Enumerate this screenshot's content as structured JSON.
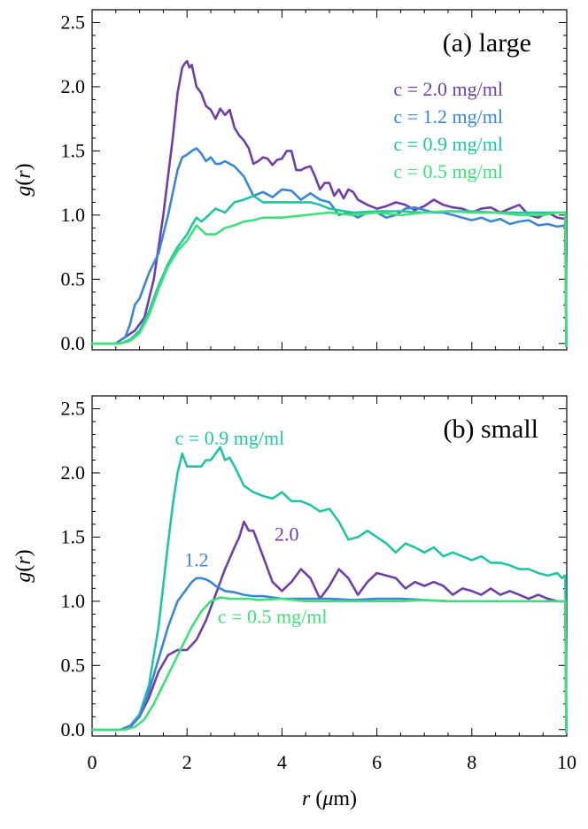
{
  "chart_data": [
    {
      "type": "line",
      "panel_label": "(a) large",
      "xlabel": "",
      "ylabel": "g(r)",
      "xlim": [
        0,
        10
      ],
      "ylim": [
        -0.05,
        2.6
      ],
      "yticks": [
        "0.0",
        "0.5",
        "1.0",
        "1.5",
        "2.0",
        "2.5"
      ],
      "xticks": [],
      "legend_placement": "top-right",
      "series": [
        {
          "name": "c = 2.0 mg/ml",
          "color": "#6f3fa7",
          "x": [
            0,
            0.5,
            0.7,
            0.9,
            1.1,
            1.3,
            1.5,
            1.7,
            1.8,
            1.9,
            1.95,
            2.0,
            2.05,
            2.1,
            2.2,
            2.3,
            2.4,
            2.5,
            2.6,
            2.7,
            2.8,
            2.9,
            3.0,
            3.1,
            3.2,
            3.3,
            3.4,
            3.5,
            3.6,
            3.7,
            3.8,
            3.9,
            4.0,
            4.1,
            4.2,
            4.3,
            4.4,
            4.5,
            4.6,
            4.7,
            4.8,
            4.9,
            5.0,
            5.1,
            5.2,
            5.3,
            5.4,
            5.5,
            5.6,
            5.8,
            6.0,
            6.2,
            6.4,
            6.6,
            6.8,
            7.0,
            7.2,
            7.4,
            7.6,
            7.8,
            8.0,
            8.2,
            8.4,
            8.6,
            8.8,
            9.0,
            9.2,
            9.4,
            9.6,
            9.8,
            9.97,
            9.99
          ],
          "y": [
            0.0,
            0.0,
            0.05,
            0.1,
            0.2,
            0.5,
            1.0,
            1.6,
            1.95,
            2.15,
            2.18,
            2.2,
            2.15,
            2.17,
            2.0,
            1.95,
            1.85,
            1.82,
            1.75,
            1.83,
            1.78,
            1.82,
            1.68,
            1.62,
            1.58,
            1.52,
            1.4,
            1.42,
            1.45,
            1.44,
            1.39,
            1.43,
            1.44,
            1.5,
            1.5,
            1.35,
            1.35,
            1.37,
            1.38,
            1.3,
            1.2,
            1.25,
            1.25,
            1.15,
            1.2,
            1.13,
            1.2,
            1.18,
            1.12,
            1.08,
            1.05,
            1.07,
            1.1,
            1.08,
            1.04,
            1.07,
            1.12,
            1.08,
            1.06,
            1.05,
            1.02,
            1.05,
            1.06,
            1.02,
            1.05,
            1.08,
            1.0,
            0.98,
            1.02,
            0.98,
            0.97,
            -0.02
          ]
        },
        {
          "name": "c = 1.2 mg/ml",
          "color": "#3b86d6",
          "x": [
            0,
            0.5,
            0.7,
            0.8,
            0.9,
            1.0,
            1.1,
            1.2,
            1.4,
            1.6,
            1.8,
            1.9,
            2.0,
            2.1,
            2.2,
            2.3,
            2.4,
            2.5,
            2.6,
            2.7,
            2.8,
            2.9,
            3.0,
            3.2,
            3.4,
            3.6,
            3.8,
            4.0,
            4.2,
            4.4,
            4.6,
            4.8,
            5.0,
            5.2,
            5.4,
            5.6,
            5.8,
            6.0,
            6.2,
            6.4,
            6.6,
            6.8,
            7.0,
            7.2,
            7.4,
            7.6,
            7.8,
            8.0,
            8.2,
            8.4,
            8.6,
            8.8,
            9.0,
            9.2,
            9.4,
            9.6,
            9.8,
            9.97,
            9.99
          ],
          "y": [
            0.0,
            0.0,
            0.05,
            0.15,
            0.3,
            0.35,
            0.45,
            0.55,
            0.7,
            1.0,
            1.35,
            1.45,
            1.47,
            1.5,
            1.52,
            1.48,
            1.42,
            1.45,
            1.4,
            1.4,
            1.42,
            1.4,
            1.38,
            1.3,
            1.15,
            1.18,
            1.14,
            1.2,
            1.19,
            1.12,
            1.17,
            1.12,
            1.1,
            1.0,
            1.02,
            0.98,
            1.02,
            1.02,
            0.98,
            1.0,
            1.05,
            1.06,
            1.04,
            1.02,
            1.02,
            1.0,
            0.98,
            0.96,
            0.98,
            0.95,
            0.97,
            0.93,
            0.95,
            0.96,
            0.92,
            0.93,
            0.91,
            0.92,
            -0.02
          ]
        },
        {
          "name": "c = 0.9 mg/ml",
          "color": "#22c4a4",
          "x": [
            0,
            0.6,
            0.8,
            1.0,
            1.2,
            1.4,
            1.6,
            1.8,
            2.0,
            2.1,
            2.2,
            2.3,
            2.4,
            2.6,
            2.8,
            3.0,
            3.2,
            3.4,
            3.6,
            3.8,
            4.0,
            4.2,
            4.4,
            4.6,
            4.8,
            5.0,
            5.5,
            6.0,
            6.5,
            7.0,
            7.5,
            8.0,
            8.5,
            9.0,
            9.5,
            9.8,
            9.97,
            9.99
          ],
          "y": [
            0.0,
            0.0,
            0.03,
            0.1,
            0.25,
            0.45,
            0.62,
            0.75,
            0.85,
            0.92,
            0.98,
            0.95,
            0.98,
            1.05,
            1.02,
            1.1,
            1.12,
            1.15,
            1.1,
            1.1,
            1.1,
            1.1,
            1.1,
            1.1,
            1.08,
            1.05,
            1.02,
            1.03,
            1.03,
            1.02,
            1.03,
            1.03,
            1.02,
            1.02,
            1.02,
            1.02,
            1.02,
            -0.02
          ]
        },
        {
          "name": "c = 0.5 mg/ml",
          "color": "#3ee07a",
          "x": [
            0,
            0.6,
            0.8,
            1.0,
            1.2,
            1.4,
            1.6,
            1.8,
            2.0,
            2.2,
            2.4,
            2.6,
            2.8,
            3.0,
            3.2,
            3.4,
            3.6,
            3.8,
            4.0,
            4.5,
            5.0,
            5.5,
            6.0,
            6.5,
            7.0,
            7.5,
            8.0,
            8.5,
            9.0,
            9.5,
            9.8,
            9.97,
            9.99
          ],
          "y": [
            0.0,
            0.0,
            0.02,
            0.08,
            0.22,
            0.42,
            0.6,
            0.72,
            0.8,
            0.92,
            0.85,
            0.85,
            0.9,
            0.92,
            0.95,
            0.96,
            0.98,
            0.98,
            0.98,
            1.0,
            1.02,
            1.0,
            1.02,
            1.0,
            1.02,
            1.03,
            1.02,
            1.02,
            1.0,
            1.0,
            1.02,
            1.02,
            -0.02
          ]
        }
      ],
      "annotations": []
    },
    {
      "type": "line",
      "panel_label": "(b) small",
      "xlabel": "r (μm)",
      "ylabel": "g(r)",
      "xlim": [
        0,
        10
      ],
      "ylim": [
        -0.05,
        2.6
      ],
      "yticks": [
        "0.0",
        "0.5",
        "1.0",
        "1.5",
        "2.0",
        "2.5"
      ],
      "xticks": [
        "0",
        "2",
        "4",
        "6",
        "8",
        "10"
      ],
      "series": [
        {
          "name": "c = 0.9 mg/ml",
          "color": "#22c4a4",
          "x": [
            0,
            0.6,
            0.8,
            1.0,
            1.2,
            1.4,
            1.6,
            1.7,
            1.8,
            1.9,
            2.0,
            2.1,
            2.2,
            2.3,
            2.4,
            2.5,
            2.6,
            2.7,
            2.8,
            2.9,
            3.0,
            3.2,
            3.4,
            3.6,
            3.8,
            4.0,
            4.2,
            4.4,
            4.6,
            4.8,
            5.0,
            5.2,
            5.4,
            5.6,
            5.8,
            6.0,
            6.2,
            6.4,
            6.6,
            6.8,
            7.0,
            7.2,
            7.4,
            7.6,
            7.8,
            8.0,
            8.2,
            8.4,
            8.6,
            8.8,
            9.0,
            9.2,
            9.4,
            9.6,
            9.8,
            9.9,
            9.97,
            9.99
          ],
          "y": [
            0.0,
            0.0,
            0.03,
            0.12,
            0.35,
            0.8,
            1.45,
            1.75,
            2.0,
            2.15,
            2.05,
            2.05,
            2.05,
            2.05,
            2.1,
            2.1,
            2.15,
            2.2,
            2.1,
            2.12,
            2.05,
            1.9,
            1.85,
            1.82,
            1.8,
            1.85,
            1.78,
            1.78,
            1.75,
            1.7,
            1.72,
            1.62,
            1.48,
            1.5,
            1.55,
            1.5,
            1.45,
            1.38,
            1.45,
            1.42,
            1.38,
            1.42,
            1.35,
            1.38,
            1.35,
            1.32,
            1.35,
            1.3,
            1.3,
            1.28,
            1.25,
            1.25,
            1.22,
            1.2,
            1.22,
            1.18,
            1.2,
            -0.02
          ]
        },
        {
          "name": "2.0",
          "color": "#6f3fa7",
          "x": [
            0,
            0.6,
            0.8,
            1.0,
            1.2,
            1.4,
            1.6,
            1.8,
            2.0,
            2.2,
            2.4,
            2.6,
            2.8,
            3.0,
            3.1,
            3.2,
            3.3,
            3.4,
            3.5,
            3.6,
            3.8,
            4.0,
            4.2,
            4.4,
            4.6,
            4.8,
            5.0,
            5.2,
            5.4,
            5.6,
            5.8,
            6.0,
            6.2,
            6.4,
            6.6,
            6.8,
            7.0,
            7.2,
            7.4,
            7.6,
            7.8,
            8.0,
            8.2,
            8.4,
            8.6,
            8.8,
            9.0,
            9.2,
            9.4,
            9.6,
            9.8,
            9.97,
            9.99
          ],
          "y": [
            0.0,
            0.0,
            0.02,
            0.1,
            0.25,
            0.45,
            0.58,
            0.62,
            0.62,
            0.7,
            0.85,
            1.05,
            1.25,
            1.42,
            1.5,
            1.62,
            1.55,
            1.55,
            1.45,
            1.35,
            1.15,
            1.08,
            1.15,
            1.25,
            1.18,
            1.02,
            1.12,
            1.25,
            1.18,
            1.05,
            1.15,
            1.22,
            1.2,
            1.18,
            1.1,
            1.15,
            1.12,
            1.15,
            1.12,
            1.05,
            1.1,
            1.08,
            1.05,
            1.1,
            1.05,
            1.08,
            1.05,
            1.02,
            1.05,
            1.02,
            1.0,
            1.0,
            -0.02
          ]
        },
        {
          "name": "1.2",
          "color": "#3b86d6",
          "x": [
            0,
            0.6,
            0.8,
            1.0,
            1.2,
            1.4,
            1.6,
            1.8,
            2.0,
            2.1,
            2.2,
            2.3,
            2.4,
            2.5,
            2.6,
            2.7,
            2.8,
            3.0,
            3.2,
            3.4,
            3.6,
            3.8,
            4.0,
            4.5,
            5.0,
            5.5,
            6.0,
            6.5,
            7.0,
            7.5,
            8.0,
            8.5,
            9.0,
            9.5,
            9.8,
            9.97,
            9.99
          ],
          "y": [
            0.0,
            0.0,
            0.03,
            0.1,
            0.3,
            0.55,
            0.8,
            1.0,
            1.1,
            1.15,
            1.18,
            1.18,
            1.17,
            1.15,
            1.12,
            1.1,
            1.08,
            1.07,
            1.05,
            1.04,
            1.04,
            1.03,
            1.02,
            1.02,
            1.02,
            1.01,
            1.02,
            1.02,
            1.01,
            1.0,
            1.0,
            1.0,
            1.0,
            1.0,
            1.0,
            1.0,
            -0.02
          ]
        },
        {
          "name": "c = 0.5 mg/ml",
          "color": "#3ee07a",
          "x": [
            0,
            0.7,
            0.9,
            1.1,
            1.3,
            1.5,
            1.7,
            1.9,
            2.1,
            2.3,
            2.5,
            2.7,
            2.9,
            3.1,
            3.3,
            3.5,
            4.0,
            4.5,
            5.0,
            5.5,
            6.0,
            6.5,
            7.0,
            7.5,
            8.0,
            8.5,
            9.0,
            9.5,
            9.8,
            9.97,
            9.99
          ],
          "y": [
            0.0,
            0.0,
            0.02,
            0.08,
            0.2,
            0.35,
            0.5,
            0.65,
            0.8,
            0.92,
            1.0,
            1.03,
            1.02,
            1.02,
            1.02,
            1.01,
            1.02,
            1.0,
            1.0,
            1.0,
            1.0,
            1.0,
            1.01,
            1.0,
            1.0,
            1.0,
            1.0,
            1.0,
            1.0,
            1.0,
            -0.02
          ]
        }
      ],
      "annotations": [
        {
          "text": "c = 0.9 mg/ml",
          "color": "#22c4a4",
          "x": 2.9,
          "y": 2.22
        },
        {
          "text": "2.0",
          "color": "#6f3fa7",
          "x": 4.1,
          "y": 1.47
        },
        {
          "text": "1.2",
          "color": "#3b86d6",
          "x": 2.2,
          "y": 1.27
        },
        {
          "text": "c = 0.5 mg/ml",
          "color": "#3ee07a",
          "x": 3.8,
          "y": 0.83
        }
      ]
    }
  ]
}
